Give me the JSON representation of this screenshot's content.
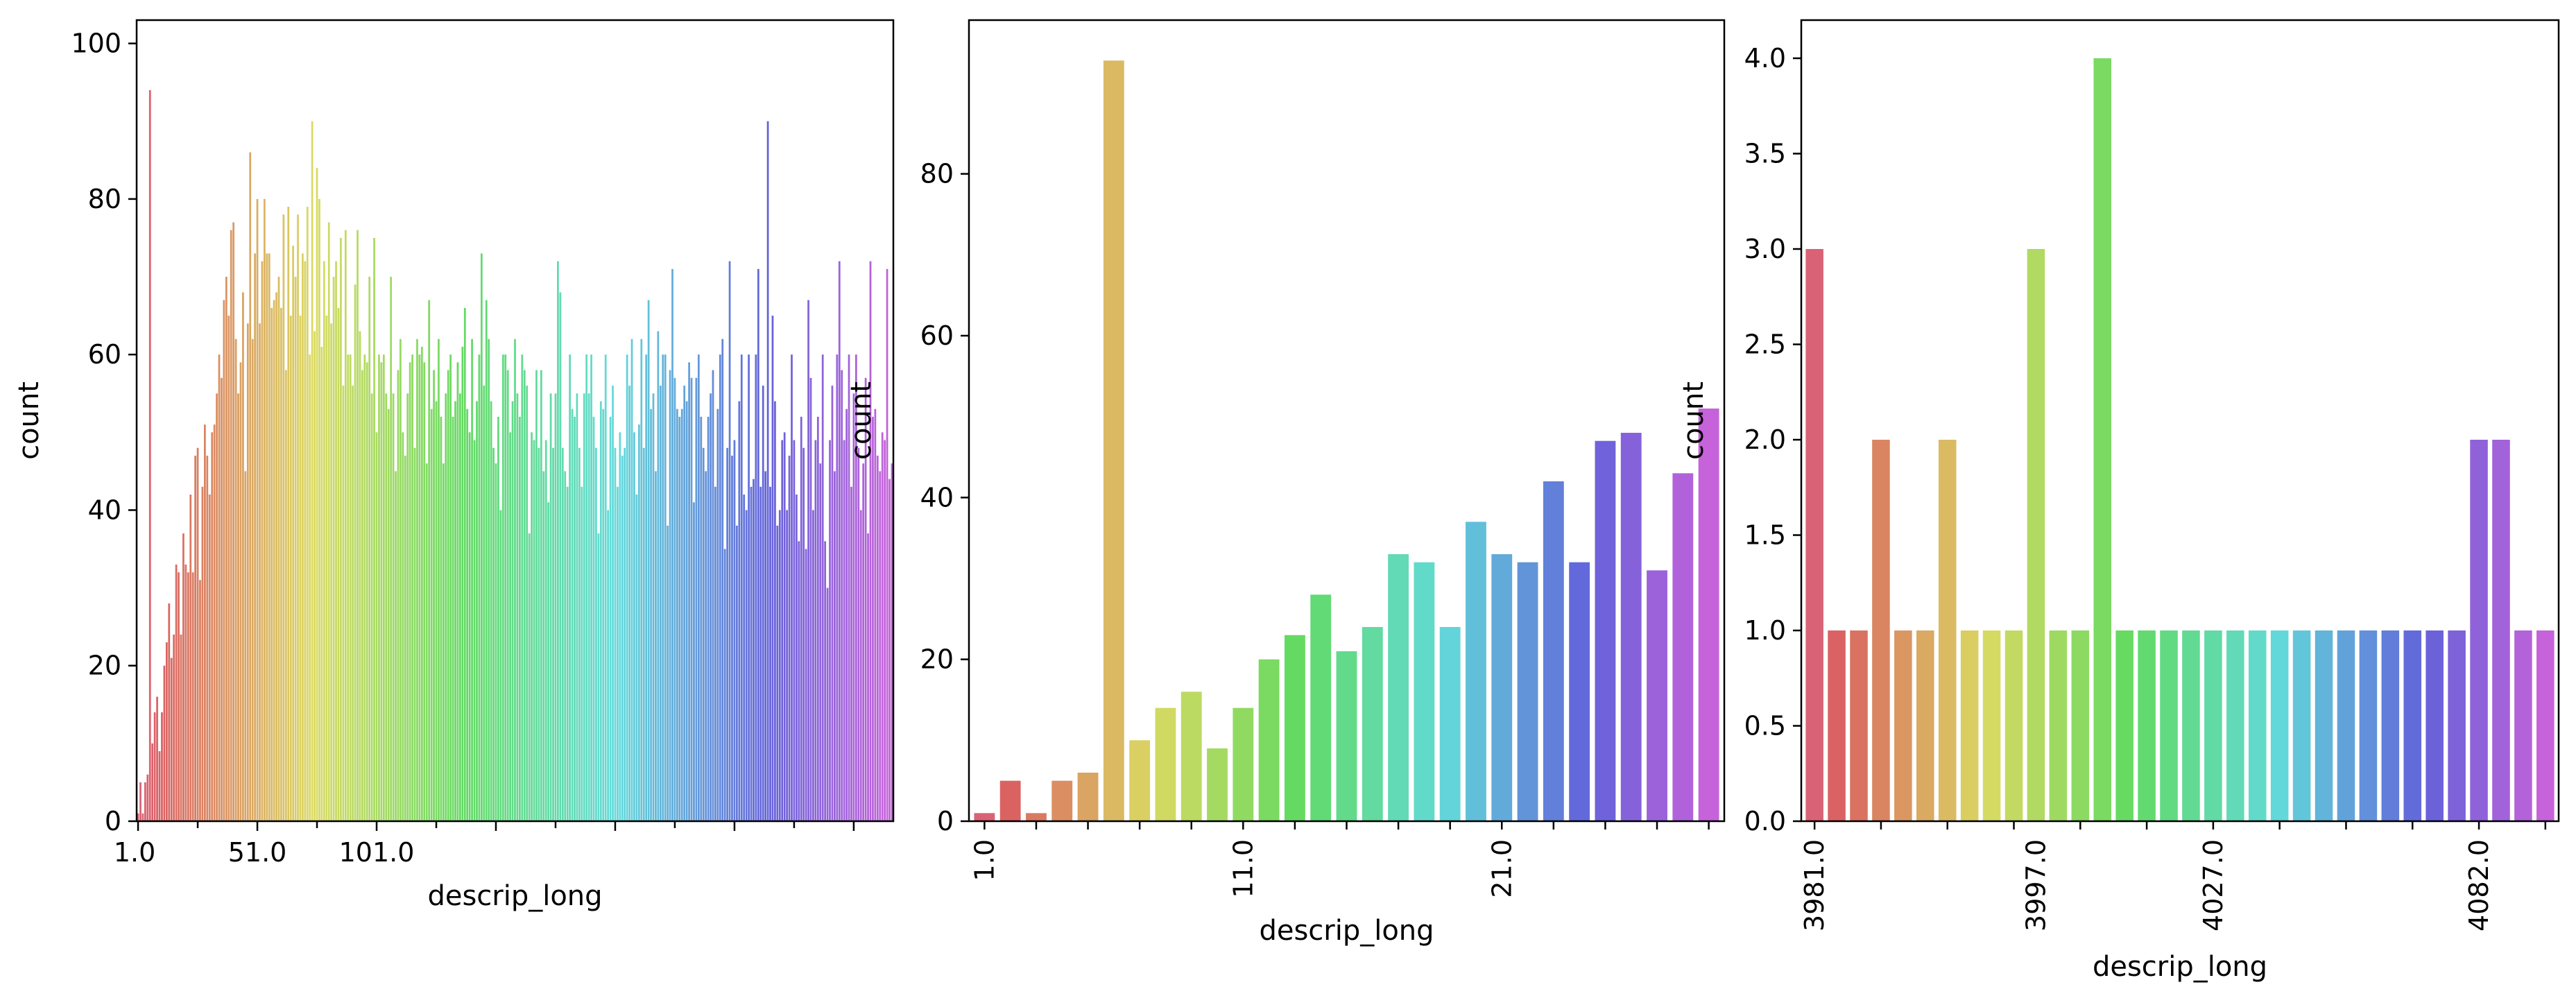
{
  "chart_data": [
    {
      "type": "bar",
      "xlabel": "descrip_long",
      "ylabel": "count",
      "ylim": [
        0,
        103
      ],
      "xtick_labels": [
        "1.0",
        "51.0",
        "101.0"
      ],
      "xtick_rotation": 0,
      "ytick_labels": [
        "0",
        "20",
        "40",
        "60",
        "80",
        "100"
      ],
      "grid": false,
      "values": [
        1,
        5,
        1,
        5,
        6,
        94,
        10,
        14,
        16,
        9,
        14,
        20,
        23,
        28,
        21,
        24,
        33,
        32,
        24,
        37,
        33,
        32,
        42,
        32,
        47,
        48,
        31,
        43,
        51,
        47,
        42,
        50,
        51,
        55,
        60,
        57,
        67,
        70,
        65,
        76,
        77,
        62,
        55,
        59,
        68,
        45,
        64,
        86,
        62,
        73,
        80,
        64,
        72,
        80,
        73,
        73,
        66,
        67,
        68,
        70,
        66,
        78,
        58,
        79,
        65,
        74,
        70,
        78,
        65,
        73,
        72,
        79,
        60,
        90,
        63,
        84,
        80,
        61,
        72,
        65,
        77,
        64,
        70,
        72,
        66,
        75,
        56,
        76,
        60,
        60,
        56,
        69,
        76,
        63,
        58,
        60,
        59,
        70,
        55,
        75,
        50,
        60,
        59,
        60,
        55,
        53,
        70,
        55,
        45,
        58,
        62,
        50,
        47,
        55,
        59,
        60,
        48,
        62,
        60,
        61,
        59,
        46,
        67,
        53,
        58,
        54,
        62,
        52,
        46,
        55,
        58,
        60,
        52,
        54,
        59,
        55,
        61,
        66,
        53,
        50,
        62,
        49,
        54,
        60,
        73,
        56,
        67,
        62,
        54,
        48,
        46,
        52,
        40,
        60,
        60,
        58,
        50,
        54,
        62,
        55,
        52,
        60,
        58,
        56,
        37,
        50,
        49,
        58,
        48,
        58,
        45,
        49,
        41,
        55,
        48,
        55,
        72,
        68,
        48,
        45,
        43,
        60,
        53,
        52,
        55,
        48,
        43,
        55,
        60,
        55,
        60,
        52,
        48,
        37,
        54,
        53,
        60,
        40,
        52,
        56,
        48,
        43,
        50,
        47,
        48,
        60,
        56,
        62,
        50,
        42,
        51,
        62,
        48,
        60,
        67,
        53,
        55,
        45,
        63,
        56,
        60,
        60,
        38,
        58,
        71,
        57,
        53,
        52,
        53,
        56,
        54,
        59,
        57,
        41,
        57,
        60,
        52,
        48,
        45,
        52,
        55,
        58,
        43,
        53,
        60,
        62,
        35,
        48,
        72,
        47,
        49,
        38,
        54,
        60,
        42,
        40,
        60,
        43,
        44,
        60,
        71,
        43,
        56,
        45,
        90,
        43,
        65,
        54,
        38,
        40,
        49,
        50,
        40,
        47,
        60,
        49,
        42,
        36,
        52,
        48,
        35,
        67,
        57,
        40,
        49,
        52,
        46,
        60,
        36,
        30,
        49,
        56,
        45,
        60,
        72,
        58,
        49,
        53,
        60,
        43,
        55,
        60,
        48,
        40,
        46,
        57,
        37,
        72,
        52,
        53,
        47,
        45,
        50,
        49,
        71,
        44,
        46
      ]
    },
    {
      "type": "bar",
      "xlabel": "descrip_long",
      "ylabel": "count",
      "ylim": [
        0,
        99
      ],
      "xtick_labels": [
        "1.0",
        "11.0",
        "21.0"
      ],
      "xtick_rotation": -90,
      "ytick_labels": [
        "0",
        "20",
        "40",
        "60",
        "80"
      ],
      "grid": false,
      "values": [
        1,
        5,
        1,
        5,
        6,
        94,
        10,
        14,
        16,
        9,
        14,
        20,
        23,
        28,
        21,
        24,
        33,
        32,
        24,
        37,
        33,
        32,
        42,
        32,
        47,
        48,
        31,
        43,
        51
      ]
    },
    {
      "type": "bar",
      "xlabel": "descrip_long",
      "ylabel": "count",
      "ylim": [
        0,
        4.2
      ],
      "xtick_labels": [
        "3981.0",
        "3997.0",
        "4027.0",
        "4082.0"
      ],
      "xtick_rotation": -90,
      "ytick_labels": [
        "0.0",
        "0.5",
        "1.0",
        "1.5",
        "2.0",
        "2.5",
        "3.0",
        "3.5",
        "4.0"
      ],
      "grid": false,
      "values": [
        3,
        1,
        1,
        2,
        1,
        1,
        2,
        1,
        1,
        1,
        3,
        1,
        1,
        4,
        1,
        1,
        1,
        1,
        1,
        1,
        1,
        1,
        1,
        1,
        1,
        1,
        1,
        1,
        1,
        1,
        2,
        2,
        1,
        1
      ]
    }
  ]
}
